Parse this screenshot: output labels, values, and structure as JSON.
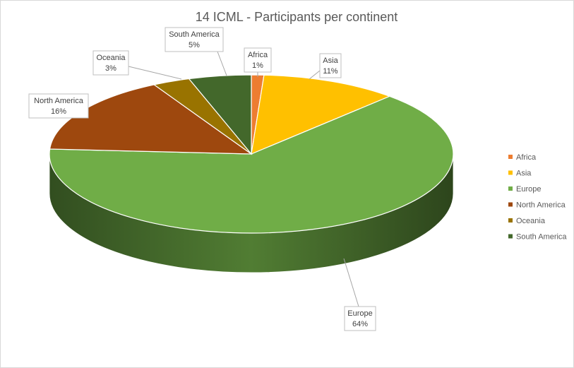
{
  "chart_data": {
    "type": "pie",
    "title": "14 ICML - Participants per continent",
    "legend_position": "right",
    "style": "3d",
    "unit": "%",
    "slices": [
      {
        "label": "Africa",
        "value": 1,
        "value_label": "1%",
        "color": "#ED7D31"
      },
      {
        "label": "Asia",
        "value": 11,
        "value_label": "11%",
        "color": "#FFC000"
      },
      {
        "label": "Europe",
        "value": 64,
        "value_label": "64%",
        "color": "#70AD47"
      },
      {
        "label": "North America",
        "value": 16,
        "value_label": "16%",
        "color": "#9E480E"
      },
      {
        "label": "Oceania",
        "value": 3,
        "value_label": "3%",
        "color": "#997300"
      },
      {
        "label": "South America",
        "value": 5,
        "value_label": "5%",
        "color": "#43682B"
      }
    ]
  }
}
